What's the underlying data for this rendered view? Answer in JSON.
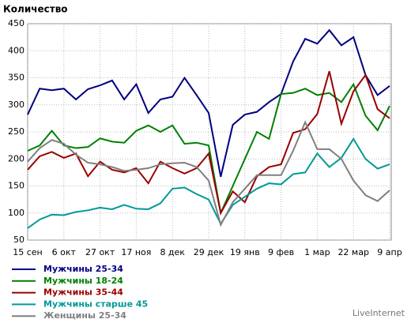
{
  "chart_data": {
    "type": "line",
    "title": "Количество",
    "categories": [
      "15 сен",
      null,
      null,
      "6 окт",
      null,
      null,
      "27 окт",
      null,
      null,
      "17 ноя",
      null,
      null,
      "8 дек",
      null,
      null,
      "29 дек",
      null,
      null,
      "19 янв",
      null,
      null,
      "9 фев",
      null,
      null,
      "1 мар",
      null,
      null,
      "22 мар",
      null,
      null,
      "9 апр"
    ],
    "series": [
      {
        "name": "Мужчины 25-34",
        "color": "#000080",
        "values": [
          282,
          330,
          327,
          330,
          310,
          329,
          336,
          345,
          310,
          338,
          285,
          310,
          315,
          350,
          318,
          285,
          167,
          263,
          282,
          287,
          305,
          320,
          380,
          422,
          413,
          438,
          410,
          425,
          355,
          318,
          335
        ]
      },
      {
        "name": "Мужчины 18-24",
        "color": "#008000",
        "values": [
          215,
          225,
          252,
          225,
          220,
          222,
          238,
          232,
          230,
          252,
          262,
          250,
          262,
          228,
          230,
          225,
          100,
          150,
          200,
          250,
          237,
          320,
          322,
          330,
          318,
          322,
          305,
          338,
          280,
          253,
          298
        ]
      },
      {
        "name": "Мужчины 35-44",
        "color": "#990000",
        "values": [
          180,
          205,
          213,
          202,
          210,
          168,
          195,
          180,
          175,
          183,
          155,
          195,
          183,
          173,
          183,
          210,
          100,
          140,
          120,
          168,
          185,
          190,
          248,
          255,
          283,
          362,
          265,
          325,
          355,
          292,
          275
        ]
      },
      {
        "name": "Мужчины старше 45",
        "color": "#009999",
        "values": [
          72,
          88,
          97,
          96,
          102,
          105,
          110,
          107,
          115,
          108,
          107,
          118,
          145,
          147,
          135,
          125,
          80,
          115,
          130,
          145,
          155,
          153,
          172,
          175,
          210,
          185,
          202,
          237,
          200,
          182,
          190
        ]
      },
      {
        "name": "Женщины 25-34",
        "color": "#808080",
        "values": [
          195,
          220,
          235,
          228,
          208,
          193,
          190,
          185,
          178,
          180,
          183,
          190,
          192,
          193,
          185,
          160,
          78,
          120,
          145,
          170,
          170,
          170,
          215,
          268,
          218,
          218,
          200,
          160,
          133,
          122,
          142
        ]
      }
    ],
    "ylim": [
      50,
      450
    ],
    "yticks": [
      50,
      100,
      150,
      200,
      250,
      300,
      350,
      400,
      450
    ],
    "grid": true,
    "footer": "LiveInternet"
  }
}
